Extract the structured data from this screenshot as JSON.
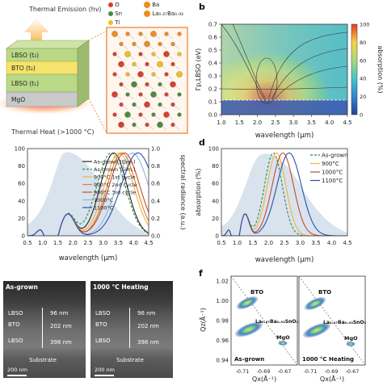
{
  "panel_labels": {
    "b": "b",
    "d": "d",
    "f": "f"
  },
  "panel_a": {
    "thermal_emission": "Thermal Emission (hν)",
    "thermal_heat": "Thermal Heat (>1000 °C)",
    "layers": [
      {
        "label": "LBSO (t₂)",
        "color": "#b9d987"
      },
      {
        "label": "BTO (t₂)",
        "color": "#f6e36b"
      },
      {
        "label": "LBSO (t₁)",
        "color": "#b9d987"
      },
      {
        "label": "MgO",
        "color": "#c9c9c9"
      }
    ],
    "legend": [
      {
        "label": "O",
        "color": "#e03a2a"
      },
      {
        "label": "Ba",
        "color": "#f08c1e"
      },
      {
        "label": "Sn",
        "color": "#4a8b3a"
      },
      {
        "label": "La₀.₀₇Ba₀.₉₃",
        "color": "#f08c1e"
      },
      {
        "label": "Ti",
        "color": "#f2c01c"
      }
    ]
  },
  "panel_b": {
    "ylabel": "Γp,LBSO (eV)",
    "xlabel": "wavelength (μm)",
    "colorbar_label": "absorption (%)",
    "colorbar_ticks": [
      "100",
      "80",
      "60",
      "40",
      "20",
      "0"
    ],
    "x_ticks": [
      "1.0",
      "1.5",
      "2.0",
      "2.5",
      "3.0",
      "3.5",
      "4.0",
      "4.5"
    ],
    "y_ticks": [
      "0.7",
      "0.6",
      "0.5",
      "0.4",
      "0.3",
      "0.2",
      "0.1",
      "0.0"
    ]
  },
  "panel_c": {
    "xlabel": "wavelength (μm)",
    "ylabel_right": "spectral radiance (a.u.)",
    "x_ticks": [
      "0.5",
      "1.0",
      "1.5",
      "2.0",
      "2.5",
      "3.0",
      "3.5",
      "4.0",
      "4.5"
    ],
    "y_left_ticks": [
      "100",
      "80",
      "60",
      "40",
      "20",
      "0"
    ],
    "y_right_ticks": [
      "1.0",
      "0.8",
      "0.6",
      "0.4",
      "0.2",
      "0.0"
    ],
    "legend": [
      {
        "label": "As-grown (Exp.)",
        "color": "#222222",
        "dash": false
      },
      {
        "label": "As-grown (Sim.)",
        "color": "#2e8b3a",
        "dash": true
      },
      {
        "label": "900°C 1st cycle",
        "color": "#f0b43c",
        "dash": false
      },
      {
        "label": "900°C 2nd cycle",
        "color": "#e87d2d",
        "dash": false
      },
      {
        "label": "900°C 3rd cycle",
        "color": "#c84a2a",
        "dash": false
      },
      {
        "label": "1000°C",
        "color": "#8fb4e0",
        "dash": false
      },
      {
        "label": "1100°C",
        "color": "#2c4fa8",
        "dash": false
      }
    ]
  },
  "panel_d": {
    "xlabel": "wavelength (μm)",
    "ylabel": "absorption (%)",
    "x_ticks": [
      "0.5",
      "1.0",
      "1.5",
      "2.0",
      "2.5",
      "3.0",
      "3.5",
      "4.0",
      "4.5"
    ],
    "y_ticks": [
      "100",
      "80",
      "60",
      "40",
      "20",
      "0"
    ],
    "legend": [
      {
        "label": "As-grown",
        "color": "#2e8b3a",
        "dash": true
      },
      {
        "label": "900°C",
        "color": "#f0b43c",
        "dash": false
      },
      {
        "label": "1000°C",
        "color": "#c84a2a",
        "dash": false
      },
      {
        "label": "1100°C",
        "color": "#2c4fa8",
        "dash": false
      }
    ]
  },
  "panel_e": {
    "left": {
      "title": "As-grown",
      "layers": [
        "LBSO",
        "BTO",
        "LBSO"
      ],
      "thicknesses": [
        "96 nm",
        "202 nm",
        "398 nm"
      ],
      "substrate": "Substrate",
      "scalebar": "200 nm"
    },
    "right": {
      "title": "1000 °C Heating",
      "layers": [
        "LBSO",
        "BTO",
        "LBSO"
      ],
      "thicknesses": [
        "96 nm",
        "202 nm",
        "398 nm"
      ],
      "substrate": "Substrate",
      "scalebar": "200 nm"
    }
  },
  "panel_f": {
    "ylabel": "Qz(Å⁻¹)",
    "xlabel": "Qx(Å⁻¹)",
    "y_ticks": [
      "1.02",
      "1.00",
      "0.98",
      "0.96",
      "0.94"
    ],
    "x_ticks": [
      "-0.71",
      "-0.69",
      "-0.67"
    ],
    "left": {
      "bto": "BTO",
      "lbso": "La₀.₀₇Ba₀.₉₃SnO₃",
      "mgo": "MgO",
      "caption": "As-grown"
    },
    "right": {
      "bto": "BTO",
      "lbso": "La₀.₀₇Ba₀.₉₃SnO₃",
      "mgo": "MgO",
      "caption": "1000 °C Heating"
    }
  }
}
